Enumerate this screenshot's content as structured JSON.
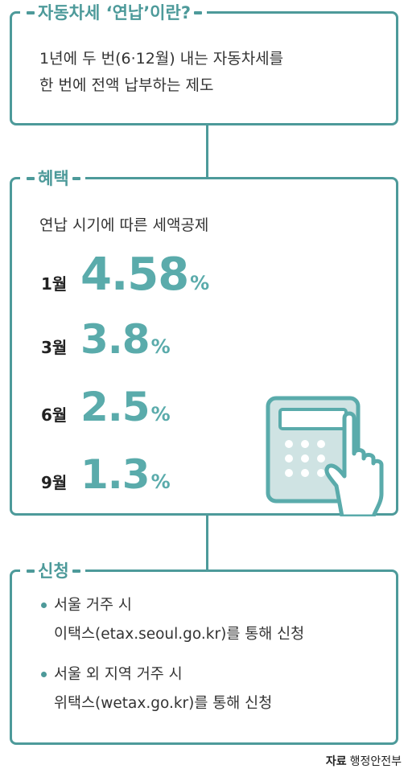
{
  "section1": {
    "title": "자동차세 ‘연납’이란?",
    "line1": "1년에 두 번(6·12월) 내는 자동차세를",
    "line2": "한 번에 전액 납부하는 제도"
  },
  "section2": {
    "title": "혜택",
    "subtitle": "연납 시기에 따른 세액공제",
    "rates": [
      {
        "month": "1월",
        "value": "4.58",
        "unit": "%"
      },
      {
        "month": "3월",
        "value": "3.8",
        "unit": "%"
      },
      {
        "month": "6월",
        "value": "2.5",
        "unit": "%"
      },
      {
        "month": "9월",
        "value": "1.3",
        "unit": "%"
      }
    ],
    "illustration": "calculator-hand-icon"
  },
  "section3": {
    "title": "신청",
    "items": [
      {
        "line1": "서울 거주 시",
        "line2": "이택스(etax.seoul.go.kr)를 통해 신청"
      },
      {
        "line1": "서울 외 지역 거주 시",
        "line2": "위택스(wetax.go.kr)를 통해 신청"
      }
    ]
  },
  "source": {
    "label": "자료",
    "value": "행정안전부"
  },
  "colors": {
    "accent": "#4d9a9a",
    "rate": "#5aabab",
    "calc_fill": "#cfe3e3"
  }
}
